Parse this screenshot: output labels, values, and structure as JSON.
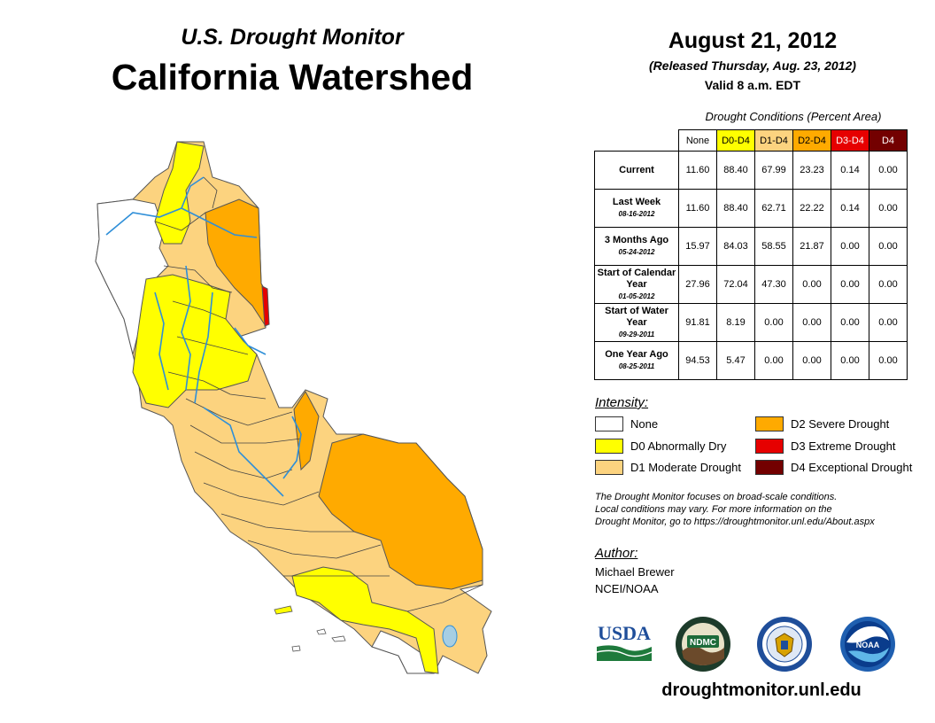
{
  "header": {
    "subtitle": "U.S. Drought Monitor",
    "title": "California Watershed",
    "date": "August 21, 2012",
    "released": "(Released Thursday, Aug. 23, 2012)",
    "valid": "Valid 8 a.m. EDT"
  },
  "table": {
    "caption": "Drought Conditions (Percent Area)",
    "columns": [
      {
        "label": "None",
        "color": "#ffffff",
        "text_color": "#000000"
      },
      {
        "label": "D0-D4",
        "color": "#ffff00",
        "text_color": "#000000"
      },
      {
        "label": "D1-D4",
        "color": "#fcd37f",
        "text_color": "#000000"
      },
      {
        "label": "D2-D4",
        "color": "#ffaa00",
        "text_color": "#000000"
      },
      {
        "label": "D3-D4",
        "color": "#e60000",
        "text_color": "#ffffff"
      },
      {
        "label": "D4",
        "color": "#730000",
        "text_color": "#ffffff"
      }
    ],
    "rows": [
      {
        "label": "Current",
        "date": "",
        "values": [
          "11.60",
          "88.40",
          "67.99",
          "23.23",
          "0.14",
          "0.00"
        ]
      },
      {
        "label": "Last Week",
        "date": "08-16-2012",
        "values": [
          "11.60",
          "88.40",
          "62.71",
          "22.22",
          "0.14",
          "0.00"
        ]
      },
      {
        "label": "3 Months Ago",
        "date": "05-24-2012",
        "values": [
          "15.97",
          "84.03",
          "58.55",
          "21.87",
          "0.00",
          "0.00"
        ]
      },
      {
        "label": "Start of Calendar Year",
        "date": "01-05-2012",
        "values": [
          "27.96",
          "72.04",
          "47.30",
          "0.00",
          "0.00",
          "0.00"
        ]
      },
      {
        "label": "Start of Water Year",
        "date": "09-29-2011",
        "values": [
          "91.81",
          "8.19",
          "0.00",
          "0.00",
          "0.00",
          "0.00"
        ]
      },
      {
        "label": "One Year Ago",
        "date": "08-25-2011",
        "values": [
          "94.53",
          "5.47",
          "0.00",
          "0.00",
          "0.00",
          "0.00"
        ]
      }
    ]
  },
  "legend": {
    "title": "Intensity:",
    "items": [
      {
        "label": "None",
        "color": "#ffffff"
      },
      {
        "label": "D0 Abnormally Dry",
        "color": "#ffff00"
      },
      {
        "label": "D1 Moderate Drought",
        "color": "#fcd37f"
      },
      {
        "label": "D2 Severe Drought",
        "color": "#ffaa00"
      },
      {
        "label": "D3 Extreme Drought",
        "color": "#e60000"
      },
      {
        "label": "D4 Exceptional Drought",
        "color": "#730000"
      }
    ]
  },
  "note": {
    "line1": "The Drought Monitor focuses on broad-scale conditions.",
    "line2": "Local conditions may vary. For more information on the",
    "line3": "Drought Monitor, go to https://droughtmonitor.unl.edu/About.aspx"
  },
  "author": {
    "label": "Author:",
    "name": "Michael Brewer",
    "org": "NCEI/NOAA"
  },
  "logos": {
    "usda": "USDA",
    "ndmc": "NDMC",
    "noaa": "NOAA"
  },
  "footer": {
    "website": "droughtmonitor.unl.edu"
  }
}
